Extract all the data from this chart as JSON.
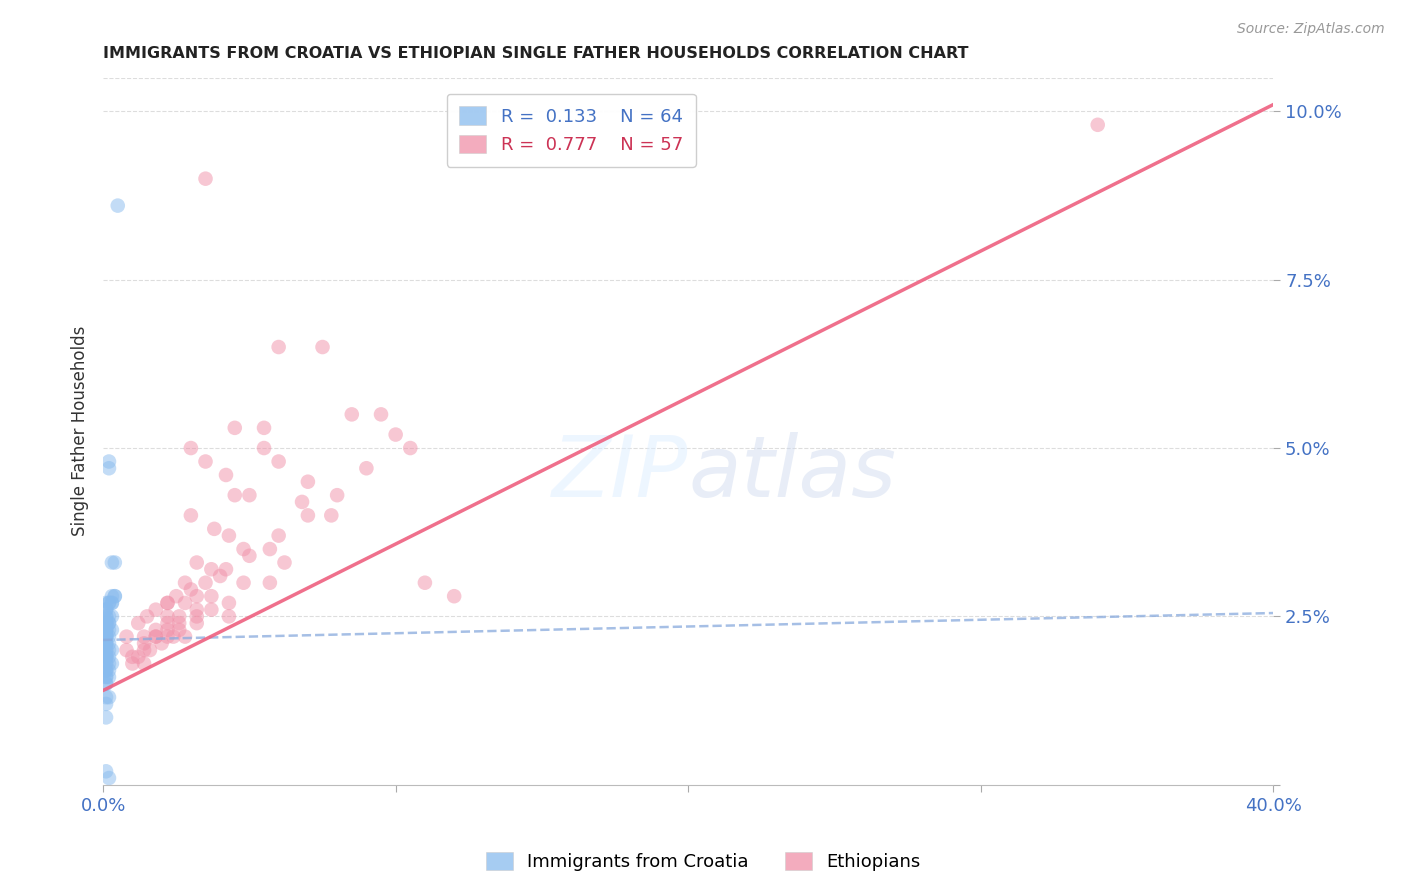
{
  "title": "IMMIGRANTS FROM CROATIA VS ETHIOPIAN SINGLE FATHER HOUSEHOLDS CORRELATION CHART",
  "source": "Source: ZipAtlas.com",
  "ylabel": "Single Father Households",
  "watermark_zip": "ZIP",
  "watermark_atlas": "atlas",
  "blue_color": "#88bbee",
  "pink_color": "#f090a8",
  "blue_line_color": "#88aadd",
  "pink_line_color": "#ee6080",
  "grid_color": "#dddddd",
  "background_color": "#ffffff",
  "blue_scatter": {
    "x": [
      0.005,
      0.002,
      0.002,
      0.003,
      0.003,
      0.004,
      0.004,
      0.002,
      0.001,
      0.003,
      0.002,
      0.003,
      0.004,
      0.001,
      0.001,
      0.001,
      0.002,
      0.001,
      0.003,
      0.002,
      0.001,
      0.001,
      0.002,
      0.001,
      0.001,
      0.002,
      0.003,
      0.001,
      0.001,
      0.001,
      0.001,
      0.002,
      0.001,
      0.001,
      0.001,
      0.001,
      0.002,
      0.001,
      0.001,
      0.002,
      0.003,
      0.001,
      0.001,
      0.001,
      0.002,
      0.001,
      0.001,
      0.002,
      0.001,
      0.003,
      0.001,
      0.001,
      0.002,
      0.001,
      0.002,
      0.001,
      0.001,
      0.001,
      0.001,
      0.002,
      0.001,
      0.001,
      0.001,
      0.002
    ],
    "y": [
      0.086,
      0.048,
      0.047,
      0.028,
      0.033,
      0.033,
      0.028,
      0.027,
      0.027,
      0.027,
      0.027,
      0.027,
      0.028,
      0.026,
      0.026,
      0.025,
      0.025,
      0.025,
      0.025,
      0.024,
      0.024,
      0.024,
      0.024,
      0.024,
      0.023,
      0.023,
      0.023,
      0.023,
      0.023,
      0.022,
      0.022,
      0.022,
      0.022,
      0.022,
      0.021,
      0.021,
      0.021,
      0.021,
      0.02,
      0.02,
      0.02,
      0.02,
      0.019,
      0.019,
      0.019,
      0.019,
      0.018,
      0.018,
      0.018,
      0.018,
      0.017,
      0.017,
      0.017,
      0.016,
      0.016,
      0.016,
      0.015,
      0.015,
      0.013,
      0.013,
      0.012,
      0.01,
      0.002,
      0.001
    ]
  },
  "pink_scatter": {
    "x": [
      0.34,
      0.035,
      0.06,
      0.075,
      0.085,
      0.045,
      0.055,
      0.095,
      0.105,
      0.055,
      0.03,
      0.035,
      0.042,
      0.06,
      0.07,
      0.045,
      0.05,
      0.068,
      0.078,
      0.03,
      0.038,
      0.043,
      0.048,
      0.057,
      0.062,
      0.032,
      0.037,
      0.042,
      0.048,
      0.057,
      0.028,
      0.032,
      0.037,
      0.043,
      0.022,
      0.028,
      0.032,
      0.037,
      0.043,
      0.022,
      0.026,
      0.032,
      0.022,
      0.026,
      0.032,
      0.018,
      0.022,
      0.026,
      0.018,
      0.022,
      0.014,
      0.018,
      0.014,
      0.01,
      0.014,
      0.11,
      0.12,
      0.008,
      0.008,
      0.01,
      0.012,
      0.016,
      0.02,
      0.024,
      0.028,
      0.012,
      0.015,
      0.018,
      0.022,
      0.025,
      0.03,
      0.035,
      0.04,
      0.05,
      0.06,
      0.07,
      0.014,
      0.08,
      0.09,
      0.1
    ],
    "y": [
      0.098,
      0.09,
      0.065,
      0.065,
      0.055,
      0.053,
      0.053,
      0.055,
      0.05,
      0.05,
      0.05,
      0.048,
      0.046,
      0.048,
      0.045,
      0.043,
      0.043,
      0.042,
      0.04,
      0.04,
      0.038,
      0.037,
      0.035,
      0.035,
      0.033,
      0.033,
      0.032,
      0.032,
      0.03,
      0.03,
      0.03,
      0.028,
      0.028,
      0.027,
      0.027,
      0.027,
      0.026,
      0.026,
      0.025,
      0.025,
      0.025,
      0.025,
      0.024,
      0.024,
      0.024,
      0.023,
      0.023,
      0.023,
      0.022,
      0.022,
      0.022,
      0.022,
      0.02,
      0.018,
      0.018,
      0.03,
      0.028,
      0.022,
      0.02,
      0.019,
      0.019,
      0.02,
      0.021,
      0.022,
      0.022,
      0.024,
      0.025,
      0.026,
      0.027,
      0.028,
      0.029,
      0.03,
      0.031,
      0.034,
      0.037,
      0.04,
      0.021,
      0.043,
      0.047,
      0.052
    ]
  },
  "blue_line": {
    "x0": 0.0,
    "x1": 0.4,
    "y0": 0.0215,
    "y1": 0.0255
  },
  "pink_line": {
    "x0": 0.0,
    "x1": 0.4,
    "y0": 0.014,
    "y1": 0.101
  },
  "xmin": 0.0,
  "xmax": 0.4,
  "ymin": 0.0,
  "ymax": 0.105,
  "x_tick_positions": [
    0.0,
    0.1,
    0.2,
    0.3,
    0.4
  ],
  "x_tick_labels": [
    "0.0%",
    "",
    "",
    "",
    "40.0%"
  ],
  "y_tick_positions": [
    0.0,
    0.025,
    0.05,
    0.075,
    0.1
  ],
  "y_tick_labels": [
    "",
    "2.5%",
    "5.0%",
    "7.5%",
    "10.0%"
  ]
}
